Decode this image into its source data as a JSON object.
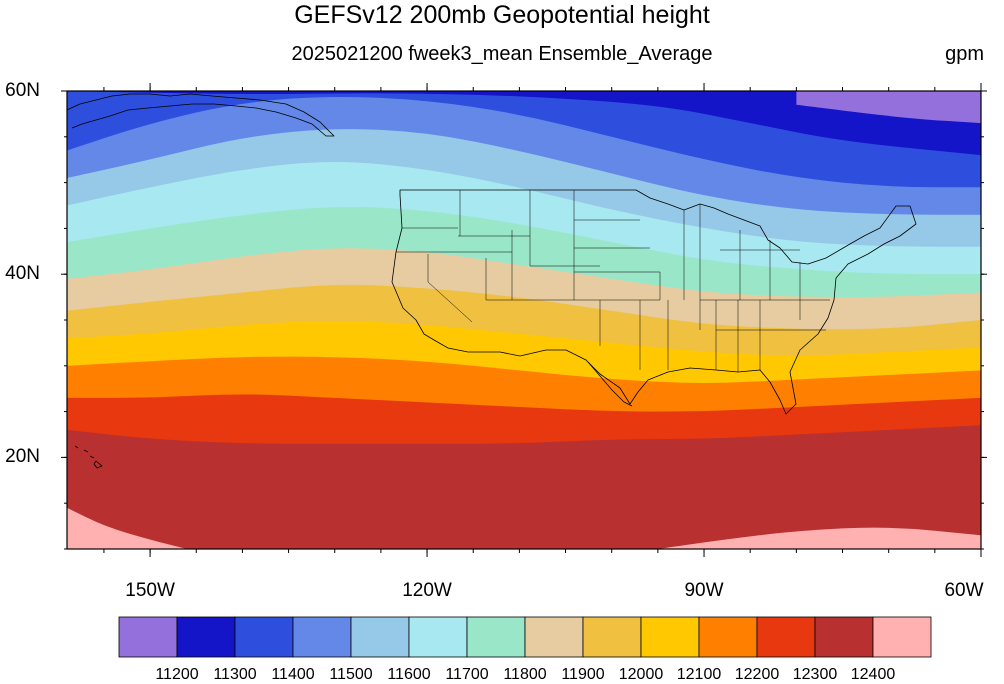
{
  "title": "GEFSv12 200mb Geopotential height",
  "subtitle": "2025021200 fweek3_mean Ensemble_Average",
  "units": "gpm",
  "map": {
    "projection": "cylindrical equidistant",
    "lon_range": [
      -159,
      -60
    ],
    "lat_range": [
      10,
      60
    ],
    "lat_ticks": [
      {
        "lat": 60,
        "label": "60N"
      },
      {
        "lat": 40,
        "label": "40N"
      },
      {
        "lat": 20,
        "label": "20N"
      }
    ],
    "lon_ticks": [
      {
        "lon": -150,
        "label": "150W"
      },
      {
        "lon": -120,
        "label": "120W"
      },
      {
        "lon": -90,
        "label": "90W"
      },
      {
        "lon": -60,
        "label": "60W"
      }
    ]
  },
  "colorbar": {
    "colors": [
      "#9370db",
      "#1414c8",
      "#2e4fdd",
      "#6488e8",
      "#96c8e8",
      "#a8e8f0",
      "#9ae6c8",
      "#e6cca0",
      "#f0c040",
      "#ffc800",
      "#ff8000",
      "#e83810",
      "#b83030",
      "#ffb0b0"
    ],
    "labels": [
      "11200",
      "11300",
      "11400",
      "11500",
      "11600",
      "11700",
      "11800",
      "11900",
      "12000",
      "12100",
      "12200",
      "12300",
      "12400"
    ]
  },
  "chart_data": {
    "type": "heatmap",
    "variable": "200mb Geopotential height",
    "units": "gpm",
    "levels": [
      11200,
      11300,
      11400,
      11500,
      11600,
      11700,
      11800,
      11900,
      12000,
      12100,
      12200,
      12300,
      12400
    ],
    "contour_boundaries": [
      {
        "value": 11200,
        "lon": [
          -80,
          -68,
          -60
        ],
        "lat": [
          58.5,
          57.0,
          56.5
        ]
      },
      {
        "value": 11300,
        "lon": [
          -159,
          -140,
          -125,
          -110,
          -95,
          -85,
          -75,
          -60
        ],
        "lat": [
          60.0,
          59.6,
          59.8,
          59.5,
          58.5,
          56.5,
          54.5,
          53.0
        ]
      },
      {
        "value": 11400,
        "lon": [
          -159,
          -150,
          -140,
          -130,
          -120,
          -110,
          -100,
          -90,
          -80,
          -70,
          -60
        ],
        "lat": [
          53.5,
          56.5,
          58.8,
          59.5,
          59.0,
          57.5,
          55.0,
          52.5,
          50.5,
          49.5,
          49.5
        ]
      },
      {
        "value": 11500,
        "lon": [
          -159,
          -150,
          -140,
          -130,
          -120,
          -110,
          -100,
          -90,
          -80,
          -70,
          -60
        ],
        "lat": [
          50.5,
          52.5,
          55.0,
          56.0,
          55.5,
          53.5,
          51.0,
          48.5,
          47.0,
          46.5,
          46.5
        ]
      },
      {
        "value": 11600,
        "lon": [
          -159,
          -150,
          -140,
          -130,
          -120,
          -110,
          -100,
          -90,
          -80,
          -70,
          -60
        ],
        "lat": [
          47.5,
          49.5,
          51.5,
          52.5,
          51.5,
          49.5,
          47.0,
          45.0,
          43.5,
          43.0,
          43.0
        ]
      },
      {
        "value": 11700,
        "lon": [
          -159,
          -150,
          -140,
          -130,
          -120,
          -110,
          -100,
          -90,
          -80,
          -70,
          -60
        ],
        "lat": [
          43.5,
          45.0,
          46.5,
          47.5,
          47.0,
          45.5,
          43.5,
          41.5,
          40.5,
          40.0,
          40.0
        ]
      },
      {
        "value": 11800,
        "lon": [
          -159,
          -150,
          -140,
          -130,
          -120,
          -110,
          -100,
          -90,
          -80,
          -70,
          -60
        ],
        "lat": [
          39.5,
          40.5,
          42.0,
          43.0,
          42.5,
          41.0,
          39.5,
          38.0,
          37.5,
          37.5,
          38.0
        ]
      },
      {
        "value": 11900,
        "lon": [
          -159,
          -150,
          -140,
          -130,
          -120,
          -110,
          -100,
          -90,
          -80,
          -70,
          -60
        ],
        "lat": [
          36.0,
          37.0,
          38.0,
          39.0,
          38.5,
          37.5,
          36.0,
          34.5,
          34.0,
          34.0,
          35.0
        ]
      },
      {
        "value": 12000,
        "lon": [
          -159,
          -150,
          -140,
          -130,
          -120,
          -110,
          -100,
          -90,
          -80,
          -70,
          -60
        ],
        "lat": [
          33.0,
          33.5,
          34.5,
          35.0,
          34.5,
          33.5,
          32.5,
          31.5,
          31.0,
          31.5,
          32.0
        ]
      },
      {
        "value": 12100,
        "lon": [
          -159,
          -150,
          -140,
          -130,
          -120,
          -110,
          -100,
          -90,
          -80,
          -70,
          -60
        ],
        "lat": [
          30.0,
          30.5,
          31.0,
          31.0,
          30.5,
          29.5,
          28.5,
          28.0,
          28.5,
          29.0,
          29.5
        ]
      },
      {
        "value": 12200,
        "lon": [
          -159,
          -150,
          -140,
          -130,
          -120,
          -110,
          -100,
          -90,
          -80,
          -70,
          -60
        ],
        "lat": [
          26.5,
          26.5,
          27.0,
          26.5,
          26.0,
          25.5,
          25.0,
          25.0,
          25.5,
          26.0,
          26.5
        ]
      },
      {
        "value": 12300,
        "lon": [
          -159,
          -150,
          -140,
          -130,
          -120,
          -110,
          -100,
          -90,
          -80,
          -70,
          -60
        ],
        "lat": [
          23.0,
          22.0,
          21.5,
          21.5,
          21.5,
          21.5,
          22.0,
          22.0,
          22.5,
          23.0,
          23.5
        ]
      },
      {
        "value": 12400,
        "lon": [
          -159,
          -155,
          -150,
          -146
        ],
        "lat": [
          14.5,
          12.5,
          11.0,
          10.0
        ]
      },
      {
        "value": 12400,
        "lon": [
          -95,
          -88,
          -80,
          -70,
          -60
        ],
        "lat": [
          10.0,
          11.0,
          12.0,
          12.5,
          11.5
        ]
      }
    ]
  }
}
